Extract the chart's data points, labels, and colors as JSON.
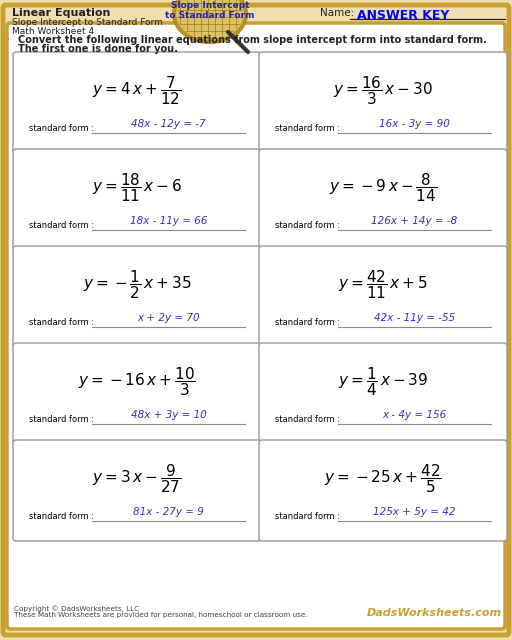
{
  "title_left": "Linear Equation",
  "subtitle1": "Slope Intercept to Standard Form",
  "subtitle2": "Math Worksheet 4",
  "name_label": "Name:",
  "answer_key": "ANSWER KEY",
  "badge_text1": "Slope Intercept",
  "badge_text2": "to Standard Form",
  "instructions1": "Convert the following linear equations from slope intercept form into standard form.",
  "instructions2": "The first one is done for you.",
  "bg_color": "#f0deb0",
  "cell_bg": "#ffffff",
  "border_color": "#c8a030",
  "answer_color": "#3333bb",
  "text_color": "#222222",
  "equations": [
    {
      "math": "$y = 4\\,x + \\dfrac{7}{12}$",
      "answer": "48x - 12y = -7"
    },
    {
      "math": "$y = \\dfrac{16}{3}\\,x - 30$",
      "answer": "16x - 3y = 90"
    },
    {
      "math": "$y = \\dfrac{18}{11}\\,x - 6$",
      "answer": "18x - 11y = 66"
    },
    {
      "math": "$y = -9\\,x - \\dfrac{8}{14}$",
      "answer": "126x + 14y = -8"
    },
    {
      "math": "$y = -\\dfrac{1}{2}\\,x + 35$",
      "answer": "x + 2y = 70"
    },
    {
      "math": "$y = \\dfrac{42}{11}\\,x + 5$",
      "answer": "42x - 11y = -55"
    },
    {
      "math": "$y = -16\\,x + \\dfrac{10}{3}$",
      "answer": "48x + 3y = 10"
    },
    {
      "math": "$y = \\dfrac{1}{4}\\,x - 39$",
      "answer": "x - 4y = 156"
    },
    {
      "math": "$y = 3\\,x - \\dfrac{9}{27}$",
      "answer": "81x - 27y = 9"
    },
    {
      "math": "$y = -25\\,x + \\dfrac{42}{5}$",
      "answer": "125x + 5y = 42"
    }
  ],
  "footer_left1": "Copyright © DadsWorksheets, LLC",
  "footer_left2": "These Math Worksheets are provided for personal, homeschool or classroom use.",
  "footer_right": "DadsWorksheets.com"
}
